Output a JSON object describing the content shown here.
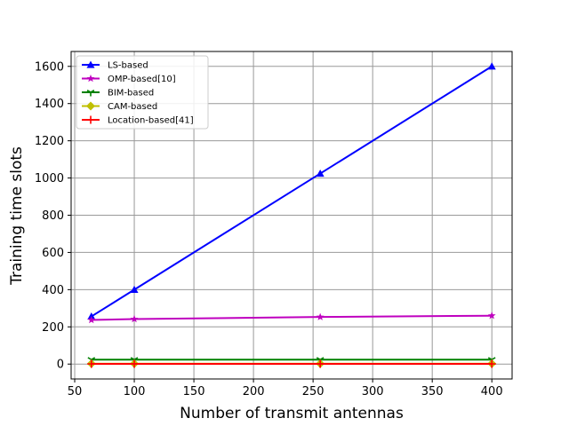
{
  "chart_data": {
    "type": "line",
    "title": "",
    "xlabel": "Number of transmit antennas",
    "ylabel": "Training time slots",
    "xlim": [
      47,
      417
    ],
    "ylim": [
      -80,
      1680
    ],
    "xticks": [
      50,
      100,
      150,
      200,
      250,
      300,
      350,
      400
    ],
    "yticks": [
      0,
      200,
      400,
      600,
      800,
      1000,
      1200,
      1400,
      1600
    ],
    "grid": true,
    "legend_position": "top-left",
    "x": [
      64,
      100,
      256,
      400
    ],
    "series": [
      {
        "name": "LS-based",
        "color": "#0000ff",
        "marker": "triangle-up",
        "values": [
          256,
          400,
          1024,
          1600
        ]
      },
      {
        "name": "OMP-based[10]",
        "color": "#bf00bf",
        "marker": "star",
        "values": [
          237,
          242,
          253,
          260
        ]
      },
      {
        "name": "BIM-based",
        "color": "#008000",
        "marker": "tri-down",
        "values": [
          24,
          24,
          24,
          24
        ]
      },
      {
        "name": "CAM-based",
        "color": "#bfbf00",
        "marker": "diamond",
        "values": [
          2,
          2,
          2,
          2
        ]
      },
      {
        "name": "Location-based[41]",
        "color": "#ff0000",
        "marker": "plus",
        "values": [
          1,
          1,
          1,
          1
        ]
      }
    ]
  }
}
